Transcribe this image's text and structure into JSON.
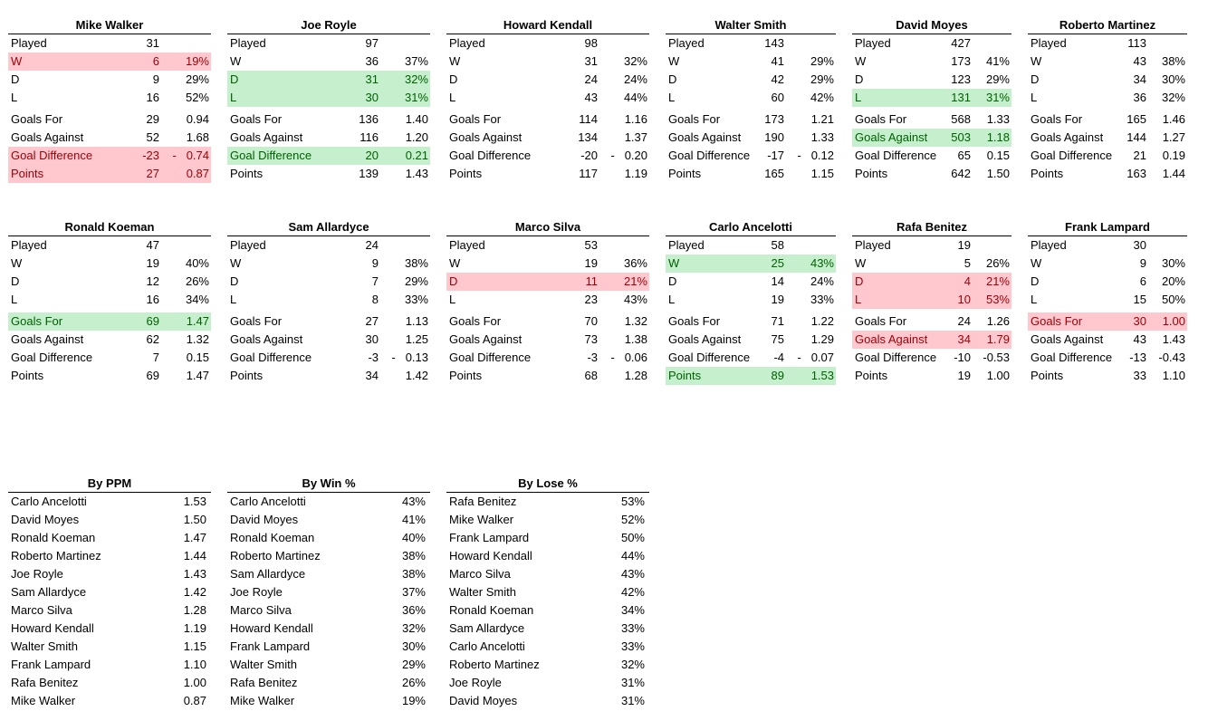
{
  "managers": [
    {
      "name": "Mike Walker",
      "rows": [
        {
          "label": "Played",
          "value": "31"
        },
        {
          "label": "W",
          "value": "6",
          "ratio": "19%",
          "highlight": "red"
        },
        {
          "label": "D",
          "value": "9",
          "ratio": "29%"
        },
        {
          "label": "L",
          "value": "16",
          "ratio": "52%"
        },
        {
          "label": "Goals For",
          "value": "29",
          "ratio": "0.94"
        },
        {
          "label": "Goals Against",
          "value": "52",
          "ratio": "1.68"
        },
        {
          "label": "Goal Difference",
          "value": "-23",
          "ratio": "-   0.74",
          "highlight": "red"
        },
        {
          "label": "Points",
          "value": "27",
          "ratio": "0.87",
          "highlight": "red"
        }
      ]
    },
    {
      "name": "Joe Royle",
      "rows": [
        {
          "label": "Played",
          "value": "97"
        },
        {
          "label": "W",
          "value": "36",
          "ratio": "37%"
        },
        {
          "label": "D",
          "value": "31",
          "ratio": "32%",
          "highlight": "green"
        },
        {
          "label": "L",
          "value": "30",
          "ratio": "31%",
          "highlight": "green"
        },
        {
          "label": "Goals For",
          "value": "136",
          "ratio": "1.40"
        },
        {
          "label": "Goals Against",
          "value": "116",
          "ratio": "1.20"
        },
        {
          "label": "Goal Difference",
          "value": "20",
          "ratio": "0.21",
          "highlight": "green"
        },
        {
          "label": "Points",
          "value": "139",
          "ratio": "1.43"
        }
      ]
    },
    {
      "name": "Howard Kendall",
      "rows": [
        {
          "label": "Played",
          "value": "98"
        },
        {
          "label": "W",
          "value": "31",
          "ratio": "32%"
        },
        {
          "label": "D",
          "value": "24",
          "ratio": "24%"
        },
        {
          "label": "L",
          "value": "43",
          "ratio": "44%"
        },
        {
          "label": "Goals For",
          "value": "114",
          "ratio": "1.16"
        },
        {
          "label": "Goals Against",
          "value": "134",
          "ratio": "1.37"
        },
        {
          "label": "Goal Difference",
          "value": "-20",
          "ratio": "-   0.20"
        },
        {
          "label": "Points",
          "value": "117",
          "ratio": "1.19"
        }
      ]
    },
    {
      "name": "Walter Smith",
      "rows": [
        {
          "label": "Played",
          "value": "143"
        },
        {
          "label": "W",
          "value": "41",
          "ratio": "29%"
        },
        {
          "label": "D",
          "value": "42",
          "ratio": "29%"
        },
        {
          "label": "L",
          "value": "60",
          "ratio": "42%"
        },
        {
          "label": "Goals For",
          "value": "173",
          "ratio": "1.21"
        },
        {
          "label": "Goals Against",
          "value": "190",
          "ratio": "1.33"
        },
        {
          "label": "Goal Difference",
          "value": "-17",
          "ratio": "-   0.12"
        },
        {
          "label": "Points",
          "value": "165",
          "ratio": "1.15"
        }
      ]
    },
    {
      "name": "David Moyes",
      "rows": [
        {
          "label": "Played",
          "value": "427"
        },
        {
          "label": "W",
          "value": "173",
          "ratio": "41%"
        },
        {
          "label": "D",
          "value": "123",
          "ratio": "29%"
        },
        {
          "label": "L",
          "value": "131",
          "ratio": "31%",
          "highlight": "green"
        },
        {
          "label": "Goals For",
          "value": "568",
          "ratio": "1.33"
        },
        {
          "label": "Goals Against",
          "value": "503",
          "ratio": "1.18",
          "highlight": "green"
        },
        {
          "label": "Goal Difference",
          "value": "65",
          "ratio": "0.15"
        },
        {
          "label": "Points",
          "value": "642",
          "ratio": "1.50"
        }
      ]
    },
    {
      "name": "Roberto Martinez",
      "rows": [
        {
          "label": "Played",
          "value": "113"
        },
        {
          "label": "W",
          "value": "43",
          "ratio": "38%"
        },
        {
          "label": "D",
          "value": "34",
          "ratio": "30%"
        },
        {
          "label": "L",
          "value": "36",
          "ratio": "32%"
        },
        {
          "label": "Goals For",
          "value": "165",
          "ratio": "1.46"
        },
        {
          "label": "Goals Against",
          "value": "144",
          "ratio": "1.27"
        },
        {
          "label": "Goal Difference",
          "value": "21",
          "ratio": "0.19"
        },
        {
          "label": "Points",
          "value": "163",
          "ratio": "1.44"
        }
      ]
    },
    {
      "name": "Ronald Koeman",
      "rows": [
        {
          "label": "Played",
          "value": "47"
        },
        {
          "label": "W",
          "value": "19",
          "ratio": "40%"
        },
        {
          "label": "D",
          "value": "12",
          "ratio": "26%"
        },
        {
          "label": "L",
          "value": "16",
          "ratio": "34%"
        },
        {
          "label": "Goals For",
          "value": "69",
          "ratio": "1.47",
          "highlight": "green"
        },
        {
          "label": "Goals Against",
          "value": "62",
          "ratio": "1.32"
        },
        {
          "label": "Goal Difference",
          "value": "7",
          "ratio": "0.15"
        },
        {
          "label": "Points",
          "value": "69",
          "ratio": "1.47"
        }
      ]
    },
    {
      "name": "Sam Allardyce",
      "rows": [
        {
          "label": "Played",
          "value": "24"
        },
        {
          "label": "W",
          "value": "9",
          "ratio": "38%"
        },
        {
          "label": "D",
          "value": "7",
          "ratio": "29%"
        },
        {
          "label": "L",
          "value": "8",
          "ratio": "33%"
        },
        {
          "label": "Goals For",
          "value": "27",
          "ratio": "1.13"
        },
        {
          "label": "Goals Against",
          "value": "30",
          "ratio": "1.25"
        },
        {
          "label": "Goal Difference",
          "value": "-3",
          "ratio": "-   0.13"
        },
        {
          "label": "Points",
          "value": "34",
          "ratio": "1.42"
        }
      ]
    },
    {
      "name": "Marco Silva",
      "rows": [
        {
          "label": "Played",
          "value": "53"
        },
        {
          "label": "W",
          "value": "19",
          "ratio": "36%"
        },
        {
          "label": "D",
          "value": "11",
          "ratio": "21%",
          "highlight": "red"
        },
        {
          "label": "L",
          "value": "23",
          "ratio": "43%"
        },
        {
          "label": "Goals For",
          "value": "70",
          "ratio": "1.32"
        },
        {
          "label": "Goals Against",
          "value": "73",
          "ratio": "1.38"
        },
        {
          "label": "Goal Difference",
          "value": "-3",
          "ratio": "-   0.06"
        },
        {
          "label": "Points",
          "value": "68",
          "ratio": "1.28"
        }
      ]
    },
    {
      "name": "Carlo Ancelotti",
      "rows": [
        {
          "label": "Played",
          "value": "58"
        },
        {
          "label": "W",
          "value": "25",
          "ratio": "43%",
          "highlight": "green"
        },
        {
          "label": "D",
          "value": "14",
          "ratio": "24%"
        },
        {
          "label": "L",
          "value": "19",
          "ratio": "33%"
        },
        {
          "label": "Goals For",
          "value": "71",
          "ratio": "1.22"
        },
        {
          "label": "Goals Against",
          "value": "75",
          "ratio": "1.29"
        },
        {
          "label": "Goal Difference",
          "value": "-4",
          "ratio": "-   0.07"
        },
        {
          "label": "Points",
          "value": "89",
          "ratio": "1.53",
          "highlight": "green"
        }
      ]
    },
    {
      "name": "Rafa Benitez",
      "rows": [
        {
          "label": "Played",
          "value": "19"
        },
        {
          "label": "W",
          "value": "5",
          "ratio": "26%"
        },
        {
          "label": "D",
          "value": "4",
          "ratio": "21%",
          "highlight": "red"
        },
        {
          "label": "L",
          "value": "10",
          "ratio": "53%",
          "highlight": "red"
        },
        {
          "label": "Goals For",
          "value": "24",
          "ratio": "1.26"
        },
        {
          "label": "Goals Against",
          "value": "34",
          "ratio": "1.79",
          "highlight": "red"
        },
        {
          "label": "Goal Difference",
          "value": "-10",
          "ratio": "-0.53"
        },
        {
          "label": "Points",
          "value": "19",
          "ratio": "1.00"
        }
      ]
    },
    {
      "name": "Frank Lampard",
      "rows": [
        {
          "label": "Played",
          "value": "30"
        },
        {
          "label": "W",
          "value": "9",
          "ratio": "30%"
        },
        {
          "label": "D",
          "value": "6",
          "ratio": "20%"
        },
        {
          "label": "L",
          "value": "15",
          "ratio": "50%"
        },
        {
          "label": "Goals For",
          "value": "30",
          "ratio": "1.00",
          "highlight": "red"
        },
        {
          "label": "Goals Against",
          "value": "43",
          "ratio": "1.43"
        },
        {
          "label": "Goal Difference",
          "value": "-13",
          "ratio": "-0.43"
        },
        {
          "label": "Points",
          "value": "33",
          "ratio": "1.10"
        }
      ]
    }
  ],
  "rankings": [
    {
      "title": "By PPM",
      "rows": [
        {
          "name": "Carlo Ancelotti",
          "value": "1.53"
        },
        {
          "name": "David Moyes",
          "value": "1.50"
        },
        {
          "name": "Ronald Koeman",
          "value": "1.47"
        },
        {
          "name": "Roberto Martinez",
          "value": "1.44"
        },
        {
          "name": "Joe Royle",
          "value": "1.43"
        },
        {
          "name": "Sam Allardyce",
          "value": "1.42"
        },
        {
          "name": "Marco Silva",
          "value": "1.28"
        },
        {
          "name": "Howard Kendall",
          "value": "1.19"
        },
        {
          "name": "Walter Smith",
          "value": "1.15"
        },
        {
          "name": "Frank Lampard",
          "value": "1.10"
        },
        {
          "name": "Rafa Benitez",
          "value": "1.00"
        },
        {
          "name": "Mike Walker",
          "value": "0.87"
        }
      ]
    },
    {
      "title": "By Win %",
      "rows": [
        {
          "name": "Carlo Ancelotti",
          "value": "43%"
        },
        {
          "name": "David Moyes",
          "value": "41%"
        },
        {
          "name": "Ronald Koeman",
          "value": "40%"
        },
        {
          "name": "Roberto Martinez",
          "value": "38%"
        },
        {
          "name": "Sam Allardyce",
          "value": "38%"
        },
        {
          "name": "Joe Royle",
          "value": "37%"
        },
        {
          "name": "Marco Silva",
          "value": "36%"
        },
        {
          "name": "Howard Kendall",
          "value": "32%"
        },
        {
          "name": "Frank Lampard",
          "value": "30%"
        },
        {
          "name": "Walter Smith",
          "value": "29%"
        },
        {
          "name": "Rafa Benitez",
          "value": "26%"
        },
        {
          "name": "Mike Walker",
          "value": "19%"
        }
      ]
    },
    {
      "title": "By Lose %",
      "rows": [
        {
          "name": "Rafa Benitez",
          "value": "53%"
        },
        {
          "name": "Mike Walker",
          "value": "52%"
        },
        {
          "name": "Frank Lampard",
          "value": "50%"
        },
        {
          "name": "Howard Kendall",
          "value": "44%"
        },
        {
          "name": "Marco Silva",
          "value": "43%"
        },
        {
          "name": "Walter Smith",
          "value": "42%"
        },
        {
          "name": "Ronald Koeman",
          "value": "34%"
        },
        {
          "name": "Sam Allardyce",
          "value": "33%"
        },
        {
          "name": "Carlo Ancelotti",
          "value": "33%"
        },
        {
          "name": "Roberto Martinez",
          "value": "32%"
        },
        {
          "name": "Joe Royle",
          "value": "31%"
        },
        {
          "name": "David Moyes",
          "value": "31%"
        }
      ]
    }
  ]
}
